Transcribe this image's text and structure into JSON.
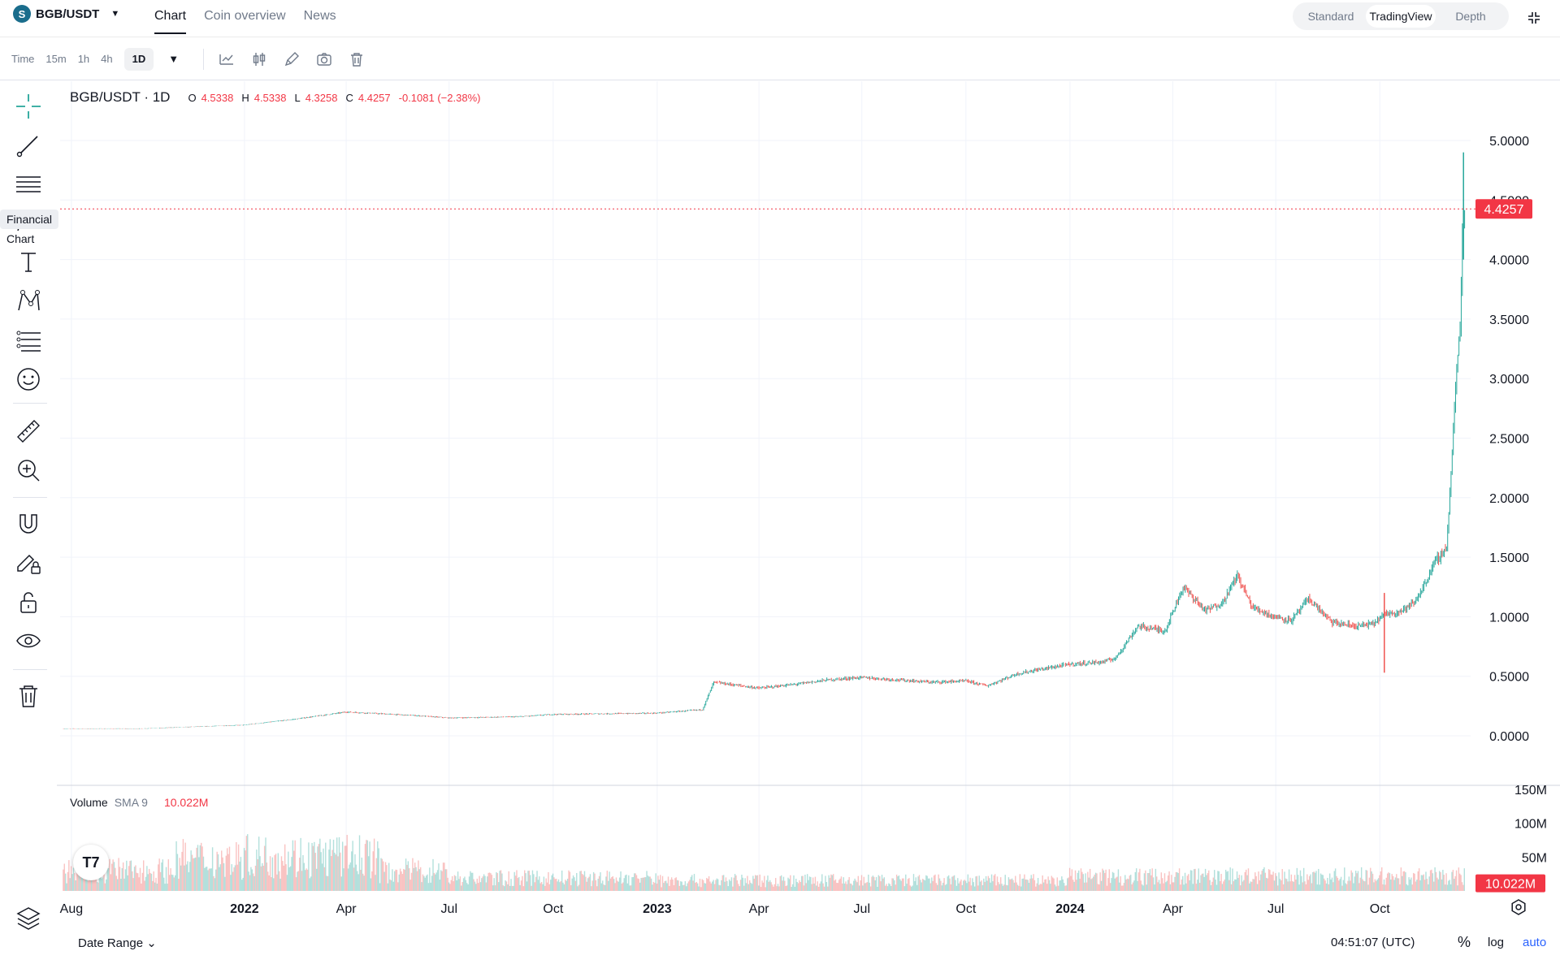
{
  "header": {
    "pair": "BGB/USDT",
    "tabs": [
      {
        "label": "Chart",
        "active": true
      },
      {
        "label": "Coin overview",
        "active": false
      },
      {
        "label": "News",
        "active": false
      }
    ],
    "views": [
      {
        "label": "Standard",
        "active": false
      },
      {
        "label": "TradingView",
        "active": true
      },
      {
        "label": "Depth",
        "active": false
      }
    ]
  },
  "toolbar": {
    "timeframes": [
      {
        "label": "Time",
        "active": false
      },
      {
        "label": "15m",
        "active": false
      },
      {
        "label": "1h",
        "active": false
      },
      {
        "label": "4h",
        "active": false
      },
      {
        "label": "1D",
        "active": true
      }
    ],
    "icons": [
      "indicator-line-icon",
      "candle-style-icon",
      "pencil-icon",
      "camera-icon",
      "trash-icon"
    ]
  },
  "left_tools": {
    "tooltip": "Financial Chart",
    "icons": [
      "crosshair-icon",
      "trend-line-icon",
      "horizontal-lines-icon",
      "brush-icon",
      "text-icon",
      "pattern-icon",
      "fib-levels-icon",
      "emoji-icon",
      "ruler-icon",
      "zoom-in-icon",
      "magnet-icon",
      "lock-drawing-icon",
      "unlock-icon",
      "eye-icon",
      "trash-icon",
      "layers-icon"
    ]
  },
  "legend": {
    "symbol": "BGB/USDT · 1D",
    "o_label": "O",
    "o_value": "4.5338",
    "h_label": "H",
    "h_value": "4.5338",
    "l_label": "L",
    "l_value": "4.3258",
    "c_label": "C",
    "c_value": "4.4257",
    "change": "-0.1081 (−2.38%)"
  },
  "volume_legend": {
    "label": "Volume",
    "sma": "SMA 9",
    "value": "10.022M"
  },
  "bottom": {
    "date_range": "Date Range",
    "clock": "04:51:07 (UTC)",
    "percent": "%",
    "log": "log",
    "auto": "auto"
  },
  "colors": {
    "up": "#26a69a",
    "down": "#ef5350",
    "price_label": "#f23645",
    "grid": "#f0f3fa"
  },
  "chart_data": {
    "type": "line",
    "title": "BGB/USDT · 1D",
    "price_axis_ticks": [
      "5.0000",
      "4.5000",
      "4.0000",
      "3.5000",
      "3.0000",
      "2.5000",
      "2.0000",
      "1.5000",
      "1.0000",
      "0.5000",
      "0.0000"
    ],
    "volume_axis_ticks": [
      "150M",
      "100M",
      "50M"
    ],
    "time_axis_ticks": [
      "Aug",
      "2022",
      "Apr",
      "Jul",
      "Oct",
      "2023",
      "Apr",
      "Jul",
      "Oct",
      "2024",
      "Apr",
      "Jul",
      "Oct"
    ],
    "ylim": [
      -0.4,
      5.0
    ],
    "current_price_label": "4.4257",
    "current_price": 4.4257,
    "current_volume_label": "10.022M",
    "current_volume": 10.022,
    "x": [
      "2021-07-25",
      "2021-10-01",
      "2021-12-31",
      "2022-02-15",
      "2022-04-01",
      "2022-06-01",
      "2022-07-01",
      "2022-09-01",
      "2022-10-01",
      "2022-12-31",
      "2023-02-10",
      "2023-02-20",
      "2023-04-01",
      "2023-05-01",
      "2023-06-01",
      "2023-07-01",
      "2023-08-01",
      "2023-09-01",
      "2023-10-01",
      "2023-10-20",
      "2023-11-15",
      "2023-12-01",
      "2023-12-31",
      "2024-01-30",
      "2024-02-10",
      "2024-03-01",
      "2024-03-15",
      "2024-03-25",
      "2024-04-10",
      "2024-04-30",
      "2024-05-15",
      "2024-05-28",
      "2024-06-10",
      "2024-06-30",
      "2024-07-15",
      "2024-07-30",
      "2024-08-20",
      "2024-09-10",
      "2024-09-25",
      "2024-10-05",
      "2024-10-20",
      "2024-11-01",
      "2024-11-10",
      "2024-11-18",
      "2024-11-24",
      "2024-11-29",
      "2024-12-03",
      "2024-12-06",
      "2024-12-09",
      "2024-12-11",
      "2024-12-13",
      "2024-12-15"
    ],
    "series": [
      {
        "values": [
          0.06,
          0.06,
          0.09,
          0.14,
          0.2,
          0.17,
          0.15,
          0.16,
          0.18,
          0.19,
          0.22,
          0.45,
          0.4,
          0.43,
          0.47,
          0.49,
          0.47,
          0.45,
          0.46,
          0.42,
          0.52,
          0.55,
          0.6,
          0.62,
          0.65,
          0.92,
          0.9,
          0.88,
          1.25,
          1.05,
          1.12,
          1.35,
          1.08,
          1.0,
          0.97,
          1.15,
          0.95,
          0.92,
          0.94,
          1.02,
          1.05,
          1.12,
          1.28,
          1.45,
          1.52,
          1.58,
          2.2,
          2.75,
          3.2,
          3.45,
          4.2,
          4.4257
        ]
      }
    ],
    "volume_note": "volume histogram bars shown beneath price chart"
  }
}
